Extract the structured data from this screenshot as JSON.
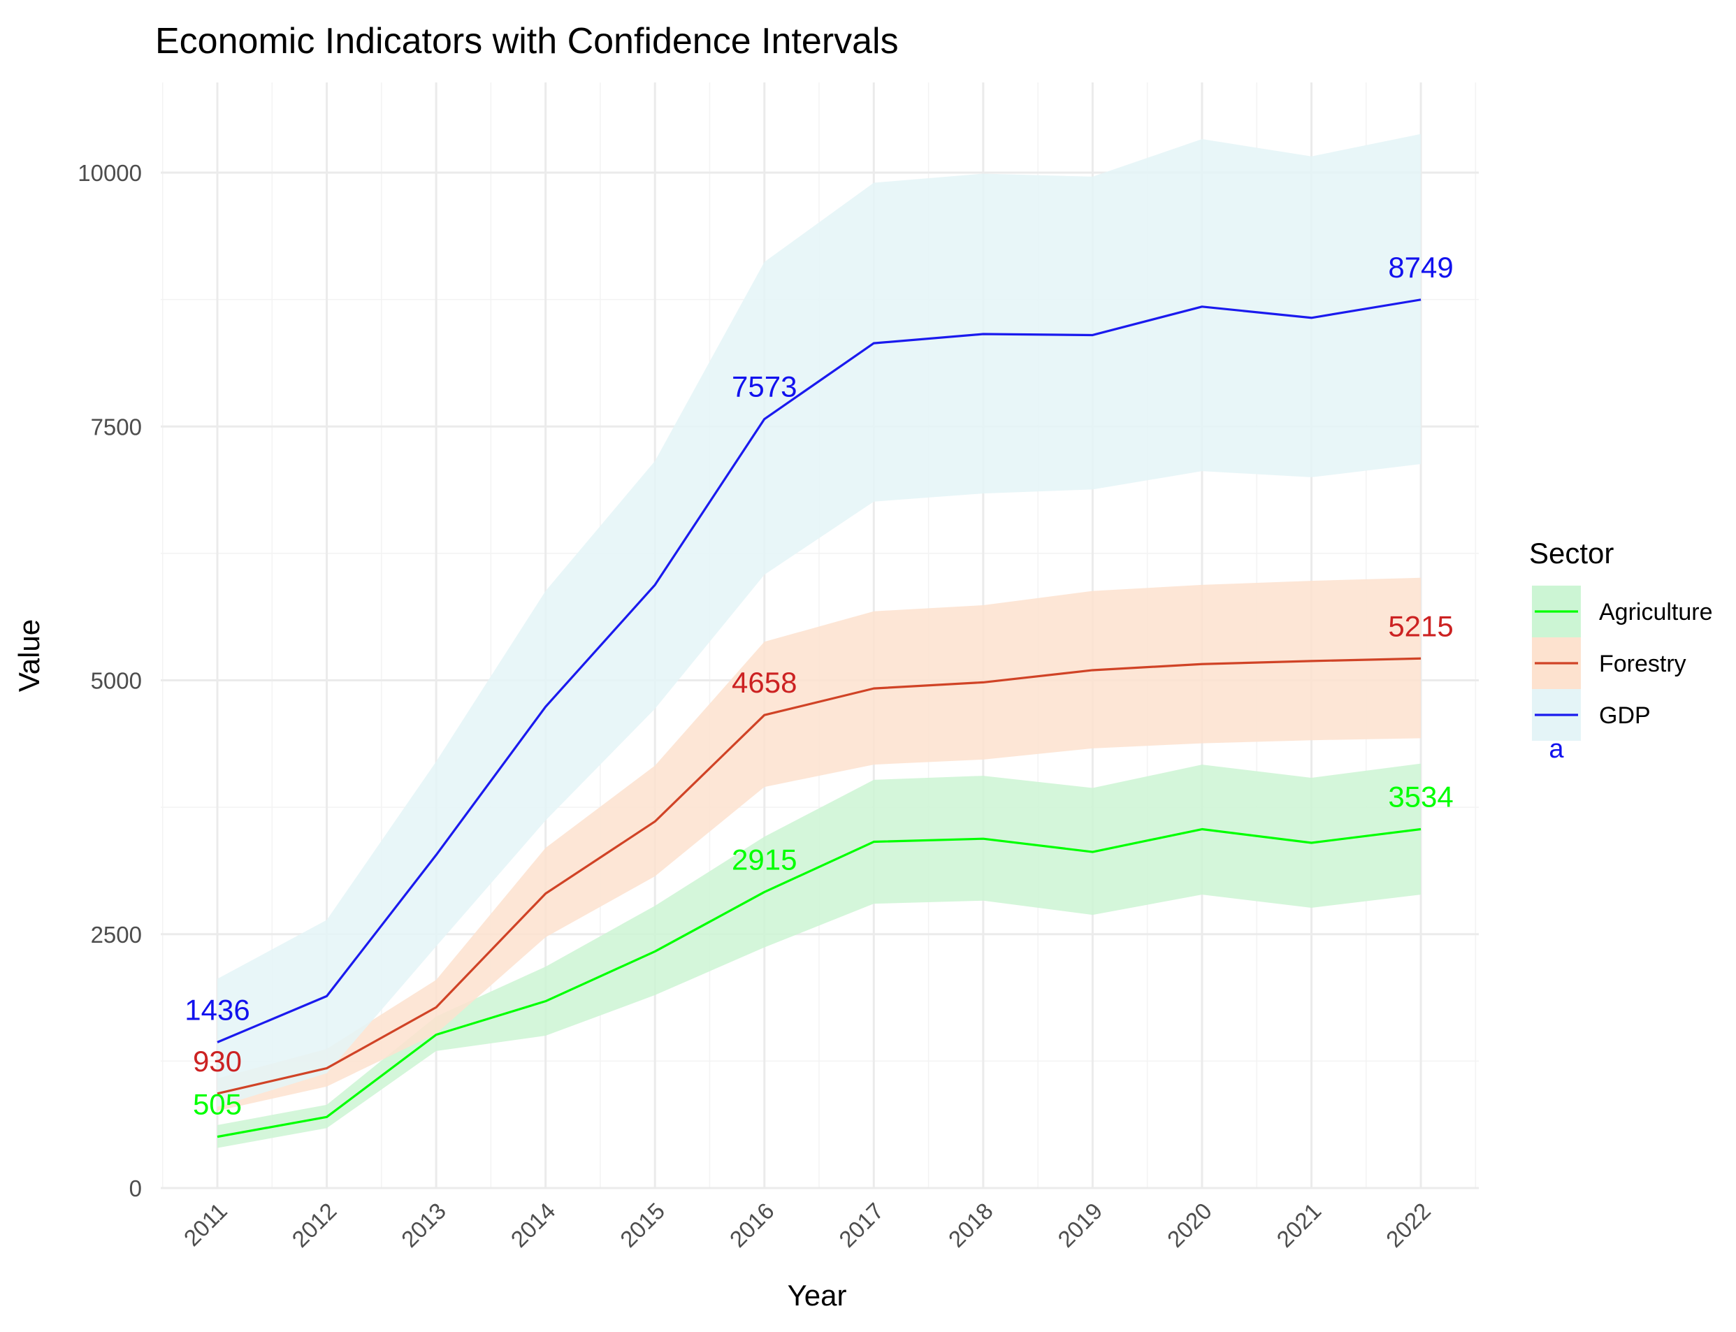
{
  "chart_data": {
    "type": "line",
    "title": "Economic Indicators with Confidence Intervals",
    "xlabel": "Year",
    "ylabel": "Value",
    "x": [
      "2011",
      "2012",
      "2013",
      "2014",
      "2015",
      "2016",
      "2017",
      "2018",
      "2019",
      "2020",
      "2021",
      "2022"
    ],
    "ylim": [
      0,
      10800
    ],
    "y_ticks": [
      0,
      2500,
      5000,
      7500,
      10000
    ],
    "y_tick_labels": [
      "0",
      "2500",
      "5000",
      "7500",
      "10000"
    ],
    "grid": true,
    "legend": {
      "title": "Sector",
      "position": "right",
      "entries": [
        "Agriculture",
        "Forestry",
        "GDP"
      ],
      "key_letter": "a"
    },
    "series": [
      {
        "name": "Agriculture",
        "color": "#00ff00",
        "ribbon_color": "#ccf5d4",
        "values": [
          505,
          700,
          1510,
          1840,
          2330,
          2915,
          3410,
          3440,
          3310,
          3534,
          3400,
          3534
        ],
        "lower": [
          395,
          590,
          1350,
          1500,
          1900,
          2370,
          2800,
          2830,
          2690,
          2890,
          2760,
          2890
        ],
        "upper": [
          620,
          820,
          1690,
          2180,
          2780,
          3460,
          4020,
          4060,
          3940,
          4170,
          4040,
          4180
        ],
        "labels": [
          {
            "year": "2011",
            "text": "505"
          },
          {
            "year": "2016",
            "text": "2915"
          },
          {
            "year": "2022",
            "text": "3534"
          }
        ]
      },
      {
        "name": "Forestry",
        "color": "#d04326",
        "label_color": "#cc2222",
        "ribbon_color": "#fde2cf",
        "values": [
          930,
          1180,
          1780,
          2900,
          3610,
          4658,
          4920,
          4980,
          5100,
          5160,
          5190,
          5215
        ],
        "lower": [
          760,
          1000,
          1520,
          2470,
          3070,
          3950,
          4170,
          4220,
          4330,
          4380,
          4410,
          4430
        ],
        "upper": [
          1080,
          1370,
          2050,
          3350,
          4160,
          5380,
          5680,
          5740,
          5880,
          5940,
          5980,
          6010
        ],
        "labels": [
          {
            "year": "2011",
            "text": "930"
          },
          {
            "year": "2016",
            "text": "4658"
          },
          {
            "year": "2022",
            "text": "5215"
          }
        ]
      },
      {
        "name": "GDP",
        "color": "#1a1aee",
        "label_color": "#1111ee",
        "ribbon_color": "#e4f4f7",
        "values": [
          1436,
          1890,
          3280,
          4740,
          5940,
          7573,
          8320,
          8410,
          8400,
          8680,
          8570,
          8749
        ],
        "lower": [
          800,
          1130,
          2380,
          3620,
          4720,
          6040,
          6760,
          6840,
          6880,
          7060,
          7000,
          7130
        ],
        "upper": [
          2060,
          2640,
          4200,
          5880,
          7160,
          9120,
          9900,
          9990,
          9960,
          10330,
          10160,
          10380
        ],
        "labels": [
          {
            "year": "2011",
            "text": "1436"
          },
          {
            "year": "2016",
            "text": "7573"
          },
          {
            "year": "2022",
            "text": "8749"
          }
        ]
      }
    ]
  }
}
